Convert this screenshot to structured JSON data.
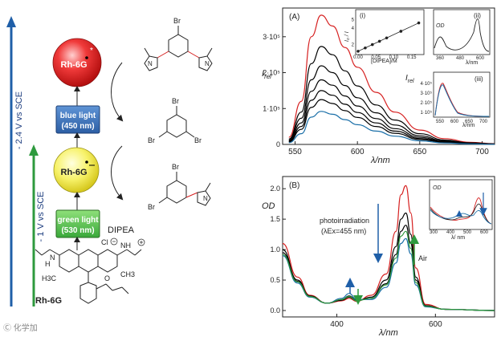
{
  "left": {
    "arrow_top_label": "- 2.4 V vs SCE",
    "arrow_bottom_label": "- 1 V vs SCE",
    "circle_red_label": "Rh-6G",
    "circle_red_symbol": "*",
    "circle_yellow_label": "Rh-6G",
    "box_blue_line1": "blue light",
    "box_blue_line2": "(450 nm)",
    "box_green_line1": "green light",
    "box_green_line2": "(530 nm)",
    "reagent": "DIPEA",
    "molecule_name": "Rh-6G",
    "atoms": {
      "br": "Br",
      "n": "N",
      "nh": "NH",
      "h": "H",
      "cl": "Cl",
      "h3c": "H3C",
      "ch3": "CH3",
      "o": "O"
    }
  },
  "watermark": "Ⓒ 化学加",
  "panelA": {
    "label": "(A)",
    "y_axis": "I",
    "y_axis_sub": "rel",
    "x_axis": "λ/nm",
    "x_ticks": [
      "550",
      "600",
      "650",
      "700"
    ],
    "y_ticks": [
      "0",
      "1·10⁵",
      "2·10⁵",
      "3·10⁵"
    ],
    "inset_i": {
      "label": "(i)",
      "x_label": "[DIPEA]/M",
      "y_label": "I₀ / I",
      "x_ticks": [
        "0.00",
        "0.05",
        "0.10",
        "0.15"
      ],
      "y_ticks": [
        "2",
        "4",
        "5"
      ]
    },
    "inset_ii": {
      "label": "(ii)",
      "y_label": "OD",
      "x_label": "λ/nm",
      "x_ticks": [
        "360",
        "480",
        "600"
      ]
    },
    "inset_iii": {
      "label": "(iii)",
      "y_label": "I",
      "y_label_sub": "rel",
      "x_label": "λ/nm",
      "x_ticks": [
        "550",
        "600",
        "650",
        "700"
      ],
      "y_ticks": [
        "1·10⁵",
        "2·10⁵",
        "3·10⁵",
        "4·10⁵"
      ]
    }
  },
  "panelB": {
    "label": "(B)",
    "y_axis": "OD",
    "x_axis": "λ/nm",
    "x_ticks": [
      "400",
      "600"
    ],
    "y_ticks": [
      "0.0",
      "0.5",
      "1.0",
      "1.5",
      "2.0"
    ],
    "annotation_line1": "photoirradiation",
    "annotation_line2": "(λEx=455 nm)",
    "air_label": "Air",
    "inset": {
      "y_label": "OD",
      "x_label": "λ/ nm",
      "x_ticks": [
        "300",
        "400",
        "500",
        "600"
      ]
    }
  },
  "chart_data": [
    {
      "type": "line",
      "title": "(A)",
      "xlabel": "λ/nm",
      "ylabel": "Irel",
      "xlim": [
        540,
        710
      ],
      "ylim": [
        0,
        380000
      ],
      "x": [
        545,
        555,
        563,
        571,
        580,
        590,
        600,
        615,
        630,
        650,
        670,
        690,
        710
      ],
      "series": [
        {
          "color": "#d62020",
          "values": [
            20000,
            120000,
            300000,
            360000,
            330000,
            270000,
            215000,
            145000,
            90000,
            40000,
            16000,
            6000,
            2000
          ]
        },
        {
          "color": "#000000",
          "values": [
            15000,
            90000,
            225000,
            273000,
            250000,
            205000,
            163000,
            110000,
            68000,
            30000,
            12000,
            4500,
            1500
          ]
        },
        {
          "color": "#000000",
          "values": [
            12000,
            73000,
            180000,
            219000,
            200000,
            164000,
            130000,
            88000,
            54000,
            24000,
            9600,
            3600,
            1200
          ]
        },
        {
          "color": "#000000",
          "values": [
            10000,
            60000,
            148000,
            180000,
            165000,
            135000,
            107000,
            72000,
            44000,
            19700,
            7900,
            3000,
            1000
          ]
        },
        {
          "color": "#000000",
          "values": [
            8000,
            50000,
            123000,
            150000,
            137000,
            112000,
            89000,
            60000,
            37000,
            16400,
            6600,
            2500,
            800
          ]
        },
        {
          "color": "#000000",
          "values": [
            7000,
            42000,
            103000,
            125000,
            114000,
            94000,
            75000,
            50000,
            31000,
            13700,
            5500,
            2100,
            700
          ]
        },
        {
          "color": "#1a6fa8",
          "values": [
            5000,
            30000,
            76000,
            92000,
            84000,
            69000,
            55000,
            37000,
            23000,
            10100,
            4000,
            1500,
            500
          ]
        }
      ]
    },
    {
      "type": "line",
      "title": "(B)",
      "xlabel": "λ/nm",
      "ylabel": "OD",
      "xlim": [
        290,
        720
      ],
      "ylim": [
        0,
        2.2
      ],
      "x": [
        290,
        320,
        345,
        380,
        410,
        425,
        440,
        470,
        500,
        520,
        530,
        540,
        550,
        560,
        580,
        620,
        720
      ],
      "series": [
        {
          "color": "#d62020",
          "values": [
            1.1,
            0.55,
            0.25,
            0.12,
            0.16,
            0.2,
            0.15,
            0.25,
            0.6,
            1.3,
            1.9,
            2.05,
            1.6,
            0.7,
            0.1,
            0.02,
            0.0
          ]
        },
        {
          "color": "#000000",
          "values": [
            1.0,
            0.5,
            0.24,
            0.12,
            0.17,
            0.22,
            0.16,
            0.22,
            0.5,
            1.05,
            1.5,
            1.6,
            1.25,
            0.55,
            0.08,
            0.02,
            0.0
          ]
        },
        {
          "color": "#000000",
          "values": [
            0.95,
            0.48,
            0.23,
            0.12,
            0.18,
            0.24,
            0.17,
            0.2,
            0.44,
            0.92,
            1.3,
            1.4,
            1.1,
            0.5,
            0.07,
            0.02,
            0.0
          ]
        },
        {
          "color": "#1a6fa8",
          "values": [
            0.9,
            0.45,
            0.22,
            0.12,
            0.2,
            0.28,
            0.18,
            0.18,
            0.38,
            0.78,
            1.1,
            1.18,
            0.93,
            0.42,
            0.06,
            0.02,
            0.0
          ]
        },
        {
          "color": "#2e9a3e",
          "values": [
            0.92,
            0.47,
            0.23,
            0.12,
            0.18,
            0.23,
            0.16,
            0.2,
            0.42,
            0.86,
            1.22,
            1.3,
            1.02,
            0.46,
            0.07,
            0.02,
            0.0
          ]
        }
      ]
    }
  ]
}
